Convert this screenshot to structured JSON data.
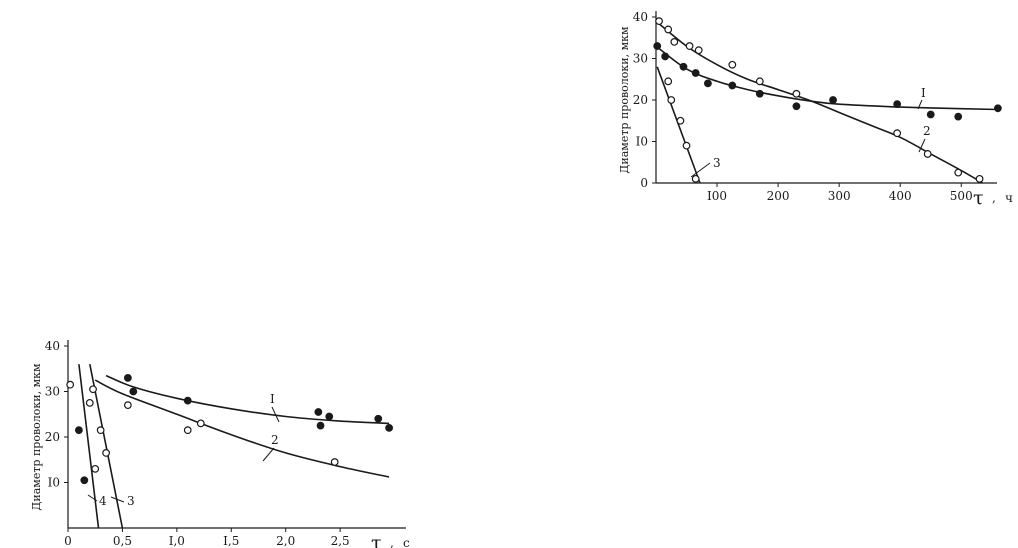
{
  "chart_data": [
    {
      "type": "scatter",
      "title": "",
      "ylabel": "Диаметр проволоки, мкм",
      "xlabel_symbol": "τ",
      "xlabel_unit": "ч",
      "xlim": [
        0,
        570
      ],
      "ylim": [
        0,
        40
      ],
      "x_ticks": [
        100,
        200,
        300,
        400,
        500
      ],
      "x_tick_labels": [
        "I00",
        "200",
        "300",
        "400",
        "500"
      ],
      "y_ticks": [
        0,
        10,
        20,
        30,
        40
      ],
      "y_tick_labels": [
        "0",
        "I0",
        "20",
        "30",
        "40"
      ],
      "grid": false,
      "series": [
        {
          "name": "I",
          "marker": "filled",
          "points": [
            [
              2,
              33
            ],
            [
              15,
              30.5
            ],
            [
              45,
              28
            ],
            [
              65,
              26.5
            ],
            [
              85,
              24
            ],
            [
              125,
              23.5
            ],
            [
              170,
              21.5
            ],
            [
              230,
              18.5
            ],
            [
              290,
              20
            ],
            [
              395,
              19
            ],
            [
              450,
              16.5
            ],
            [
              495,
              16
            ],
            [
              560,
              18
            ]
          ],
          "curve": [
            [
              0,
              33
            ],
            [
              50,
              27.5
            ],
            [
              100,
              24.5
            ],
            [
              150,
              22.5
            ],
            [
              200,
              21
            ],
            [
              250,
              19.8
            ],
            [
              300,
              19
            ],
            [
              400,
              18.3
            ],
            [
              500,
              17.9
            ],
            [
              560,
              17.7
            ]
          ]
        },
        {
          "name": "2",
          "marker": "open",
          "points": [
            [
              5,
              39
            ],
            [
              20,
              37
            ],
            [
              30,
              34
            ],
            [
              55,
              33
            ],
            [
              70,
              32
            ],
            [
              125,
              28.5
            ],
            [
              170,
              24.5
            ],
            [
              230,
              21.5
            ],
            [
              395,
              12
            ],
            [
              445,
              7
            ],
            [
              495,
              2.5
            ],
            [
              530,
              1
            ]
          ],
          "curve": [
            [
              0,
              39
            ],
            [
              50,
              33
            ],
            [
              100,
              28.5
            ],
            [
              150,
              25
            ],
            [
              200,
              22.5
            ],
            [
              250,
              20
            ],
            [
              300,
              17
            ],
            [
              350,
              14
            ],
            [
              400,
              11
            ],
            [
              450,
              7
            ],
            [
              500,
              3
            ],
            [
              535,
              0
            ]
          ]
        },
        {
          "name": "3",
          "marker": "open",
          "points": [
            [
              20,
              24.5
            ],
            [
              25,
              20
            ],
            [
              40,
              15
            ],
            [
              50,
              9
            ],
            [
              65,
              1
            ]
          ],
          "curve": [
            [
              2,
              28
            ],
            [
              72,
              0
            ]
          ]
        }
      ],
      "curve_labels": [
        "I",
        "2",
        "3"
      ]
    },
    {
      "type": "scatter",
      "title": "",
      "ylabel": "Диаметр проволоки, мкм",
      "xlabel_symbol": "τ",
      "xlabel_unit": "с",
      "xlim": [
        0,
        3.05
      ],
      "ylim": [
        0,
        40
      ],
      "x_ticks": [
        0,
        0.5,
        1.0,
        1.5,
        2.0,
        2.5
      ],
      "x_tick_labels": [
        "0",
        "0,5",
        "I,0",
        "I,5",
        "2,0",
        "2,5"
      ],
      "y_ticks": [
        10,
        20,
        30,
        40
      ],
      "y_tick_labels": [
        "I0",
        "20",
        "30",
        "40"
      ],
      "grid": false,
      "series": [
        {
          "name": "I",
          "marker": "filled",
          "points": [
            [
              0.1,
              21.5
            ],
            [
              0.15,
              10.5
            ],
            [
              0.55,
              33
            ],
            [
              0.6,
              30
            ],
            [
              1.1,
              28
            ],
            [
              2.3,
              25.5
            ],
            [
              2.4,
              24.5
            ],
            [
              2.32,
              22.5
            ],
            [
              2.85,
              24
            ],
            [
              2.95,
              22
            ]
          ],
          "curve": [
            [
              0.35,
              33.5
            ],
            [
              0.6,
              31
            ],
            [
              1.0,
              28.5
            ],
            [
              1.5,
              26.2
            ],
            [
              2.0,
              24.5
            ],
            [
              2.5,
              23.5
            ],
            [
              2.95,
              23.0
            ]
          ]
        },
        {
          "name": "2",
          "marker": "open",
          "points": [
            [
              0.02,
              31.5
            ],
            [
              0.2,
              27.5
            ],
            [
              0.23,
              30.5
            ],
            [
              0.25,
              13
            ],
            [
              0.3,
              21.5
            ],
            [
              0.55,
              27
            ],
            [
              1.1,
              21.5
            ],
            [
              1.22,
              23
            ],
            [
              2.45,
              14.5
            ]
          ],
          "curve": [
            [
              0.25,
              32.5
            ],
            [
              0.5,
              29.5
            ],
            [
              1.0,
              25
            ],
            [
              1.5,
              20.5
            ],
            [
              2.0,
              16.5
            ],
            [
              2.5,
              13.5
            ],
            [
              2.95,
              11.2
            ]
          ]
        },
        {
          "name": "3",
          "marker": "open",
          "points": [
            [
              0.35,
              16.5
            ]
          ],
          "curve": [
            [
              0.2,
              36
            ],
            [
              0.5,
              0
            ]
          ]
        },
        {
          "name": "4",
          "marker": "none",
          "points": [],
          "curve": [
            [
              0.1,
              36
            ],
            [
              0.28,
              0
            ]
          ]
        }
      ],
      "curve_labels": [
        "I",
        "2",
        "3",
        "4"
      ]
    }
  ]
}
